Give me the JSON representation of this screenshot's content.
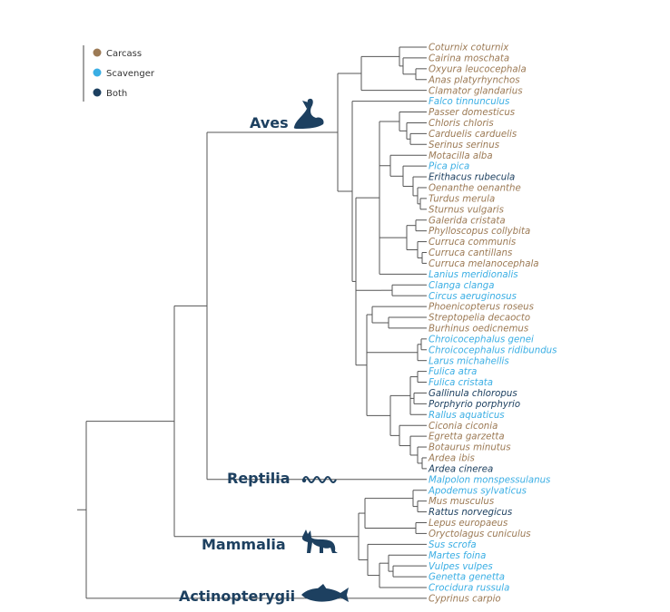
{
  "colors": {
    "carcass": "#9c7a55",
    "scavenger": "#3aaee4",
    "both": "#1d4060",
    "branch": "#555555"
  },
  "legend": [
    {
      "label": "Carcass",
      "category": "carcass"
    },
    {
      "label": "Scavenger",
      "category": "scavenger"
    },
    {
      "label": "Both",
      "category": "both"
    }
  ],
  "clades": {
    "aves": "Aves",
    "reptilia": "Reptilia",
    "mammalia": "Mammalia",
    "actinopterygii": "Actinopterygii"
  },
  "icons": {
    "aves": "bird-silhouette-icon",
    "reptilia": "snake-silhouette-icon",
    "mammalia": "fox-silhouette-icon",
    "actinopterygii": "fish-silhouette-icon"
  },
  "taxa": [
    {
      "name": "Coturnix coturnix",
      "category": "carcass"
    },
    {
      "name": "Cairina moschata",
      "category": "carcass"
    },
    {
      "name": "Oxyura leucocephala",
      "category": "carcass"
    },
    {
      "name": "Anas platyrhynchos",
      "category": "carcass"
    },
    {
      "name": "Clamator glandarius",
      "category": "carcass"
    },
    {
      "name": "Falco tinnunculus",
      "category": "scavenger"
    },
    {
      "name": "Passer domesticus",
      "category": "carcass"
    },
    {
      "name": "Chloris chloris",
      "category": "carcass"
    },
    {
      "name": "Carduelis carduelis",
      "category": "carcass"
    },
    {
      "name": "Serinus serinus",
      "category": "carcass"
    },
    {
      "name": "Motacilla alba",
      "category": "carcass"
    },
    {
      "name": "Pica pica",
      "category": "scavenger"
    },
    {
      "name": "Erithacus rubecula",
      "category": "both"
    },
    {
      "name": "Oenanthe oenanthe",
      "category": "carcass"
    },
    {
      "name": "Turdus merula",
      "category": "carcass"
    },
    {
      "name": "Sturnus vulgaris",
      "category": "carcass"
    },
    {
      "name": "Galerida cristata",
      "category": "carcass"
    },
    {
      "name": "Phylloscopus collybita",
      "category": "carcass"
    },
    {
      "name": "Curruca communis",
      "category": "carcass"
    },
    {
      "name": "Curruca cantillans",
      "category": "carcass"
    },
    {
      "name": "Curruca melanocephala",
      "category": "carcass"
    },
    {
      "name": "Lanius meridionalis",
      "category": "scavenger"
    },
    {
      "name": "Clanga clanga",
      "category": "scavenger"
    },
    {
      "name": "Circus aeruginosus",
      "category": "scavenger"
    },
    {
      "name": "Phoenicopterus roseus",
      "category": "carcass"
    },
    {
      "name": "Streptopelia decaocto",
      "category": "carcass"
    },
    {
      "name": "Burhinus oedicnemus",
      "category": "carcass"
    },
    {
      "name": "Chroicocephalus genei",
      "category": "scavenger"
    },
    {
      "name": "Chroicocephalus ridibundus",
      "category": "scavenger"
    },
    {
      "name": "Larus michahellis",
      "category": "scavenger"
    },
    {
      "name": "Fulica atra",
      "category": "scavenger"
    },
    {
      "name": "Fulica cristata",
      "category": "scavenger"
    },
    {
      "name": "Gallinula chloropus",
      "category": "both"
    },
    {
      "name": "Porphyrio porphyrio",
      "category": "both"
    },
    {
      "name": "Rallus aquaticus",
      "category": "scavenger"
    },
    {
      "name": "Ciconia ciconia",
      "category": "carcass"
    },
    {
      "name": "Egretta garzetta",
      "category": "carcass"
    },
    {
      "name": "Botaurus minutus",
      "category": "carcass"
    },
    {
      "name": "Ardea ibis",
      "category": "carcass"
    },
    {
      "name": "Ardea cinerea",
      "category": "both"
    },
    {
      "name": "Malpolon monspessulanus",
      "category": "scavenger"
    },
    {
      "name": "Apodemus sylvaticus",
      "category": "scavenger"
    },
    {
      "name": "Mus musculus",
      "category": "carcass"
    },
    {
      "name": "Rattus norvegicus",
      "category": "both"
    },
    {
      "name": "Lepus europaeus",
      "category": "carcass"
    },
    {
      "name": "Oryctolagus cuniculus",
      "category": "carcass"
    },
    {
      "name": "Sus scrofa",
      "category": "scavenger"
    },
    {
      "name": "Martes foina",
      "category": "scavenger"
    },
    {
      "name": "Vulpes vulpes",
      "category": "scavenger"
    },
    {
      "name": "Genetta genetta",
      "category": "scavenger"
    },
    {
      "name": "Crocidura russula",
      "category": "scavenger"
    },
    {
      "name": "Cyprinus carpio",
      "category": "carcass"
    }
  ]
}
